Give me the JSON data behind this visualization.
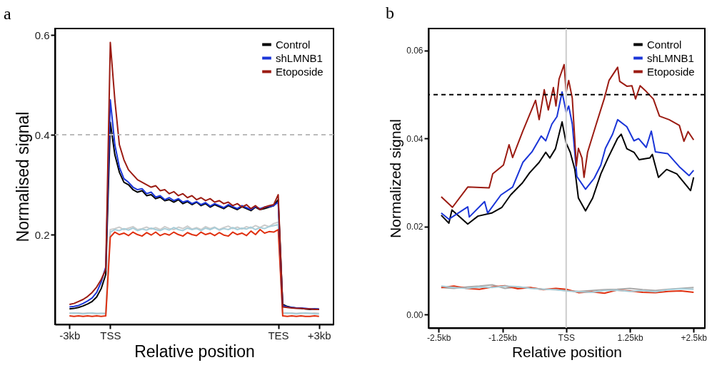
{
  "chart_data": [
    {
      "type": "line",
      "title": "a",
      "xlabel": "Relative position",
      "ylabel": "Normalised signal",
      "legend": "top right",
      "categories": [
        "-3kb",
        null,
        null,
        null,
        null,
        null,
        null,
        null,
        null,
        "TSS",
        null,
        null,
        null,
        null,
        null,
        null,
        null,
        null,
        null,
        null,
        null,
        null,
        null,
        null,
        null,
        null,
        null,
        null,
        null,
        null,
        null,
        null,
        null,
        null,
        null,
        null,
        null,
        null,
        null,
        null,
        null,
        null,
        null,
        null,
        null,
        null,
        "TES",
        null,
        null,
        null,
        null,
        null,
        null,
        null,
        null,
        "+3kb"
      ],
      "ylim": [
        0.02,
        0.613
      ],
      "yticks": [
        0.2,
        0.4,
        0.6
      ],
      "ref_lines": [
        {
          "axis": "y",
          "value": 0.4,
          "color": "#bbbbbb",
          "line_style": "dashed"
        }
      ],
      "series": [
        {
          "color": "#cccccc",
          "values": [
            0.043,
            0.042,
            0.043,
            0.042,
            0.043,
            0.042,
            0.041,
            0.042,
            0.043,
            0.21,
            0.212,
            0.215,
            0.21,
            0.213,
            0.216,
            0.21,
            0.212,
            0.215,
            0.211,
            0.214,
            0.21,
            0.216,
            0.212,
            0.21,
            0.215,
            0.212,
            0.217,
            0.211,
            0.214,
            0.21,
            0.216,
            0.212,
            0.215,
            0.21,
            0.214,
            0.217,
            0.212,
            0.215,
            0.211,
            0.216,
            0.213,
            0.218,
            0.214,
            0.219,
            0.216,
            0.222,
            0.225,
            0.043,
            0.042,
            0.043,
            0.042,
            0.043,
            0.042,
            0.042,
            0.043,
            0.042
          ]
        },
        {
          "color": "#a8cdd8",
          "values": [
            0.042,
            0.043,
            0.042,
            0.041,
            0.042,
            0.043,
            0.042,
            0.042,
            0.041,
            0.205,
            0.21,
            0.208,
            0.212,
            0.209,
            0.213,
            0.208,
            0.211,
            0.209,
            0.213,
            0.21,
            0.208,
            0.212,
            0.209,
            0.214,
            0.21,
            0.208,
            0.213,
            0.21,
            0.212,
            0.208,
            0.213,
            0.21,
            0.214,
            0.209,
            0.212,
            0.21,
            0.214,
            0.21,
            0.213,
            0.211,
            0.215,
            0.21,
            0.214,
            0.212,
            0.216,
            0.218,
            0.22,
            0.042,
            0.043,
            0.042,
            0.041,
            0.042,
            0.043,
            0.042,
            0.041,
            0.041
          ]
        },
        {
          "color": "#e0300f",
          "values": [
            0.037,
            0.036,
            0.037,
            0.036,
            0.037,
            0.036,
            0.037,
            0.036,
            0.037,
            0.195,
            0.205,
            0.2,
            0.203,
            0.198,
            0.205,
            0.2,
            0.197,
            0.204,
            0.199,
            0.205,
            0.198,
            0.202,
            0.199,
            0.205,
            0.2,
            0.197,
            0.204,
            0.2,
            0.198,
            0.205,
            0.2,
            0.203,
            0.198,
            0.204,
            0.199,
            0.197,
            0.205,
            0.2,
            0.203,
            0.198,
            0.207,
            0.2,
            0.21,
            0.203,
            0.206,
            0.205,
            0.21,
            0.037,
            0.036,
            0.037,
            0.036,
            0.037,
            0.036,
            0.036,
            0.037,
            0.036
          ]
        },
        {
          "name": "Control",
          "color": "#000000",
          "values": [
            0.051,
            0.052,
            0.054,
            0.057,
            0.061,
            0.066,
            0.075,
            0.092,
            0.12,
            0.425,
            0.36,
            0.325,
            0.305,
            0.3,
            0.29,
            0.285,
            0.288,
            0.278,
            0.28,
            0.272,
            0.275,
            0.268,
            0.27,
            0.265,
            0.27,
            0.262,
            0.266,
            0.26,
            0.265,
            0.258,
            0.262,
            0.255,
            0.26,
            0.256,
            0.252,
            0.258,
            0.254,
            0.25,
            0.256,
            0.252,
            0.248,
            0.255,
            0.25,
            0.252,
            0.255,
            0.258,
            0.27,
            0.06,
            0.056,
            0.054,
            0.053,
            0.052,
            0.051,
            0.05,
            0.051,
            0.05
          ]
        },
        {
          "name": "shLMNB1",
          "color": "#1a35d8",
          "values": [
            0.055,
            0.056,
            0.058,
            0.062,
            0.067,
            0.073,
            0.084,
            0.105,
            0.135,
            0.47,
            0.38,
            0.335,
            0.312,
            0.305,
            0.295,
            0.29,
            0.292,
            0.282,
            0.285,
            0.275,
            0.278,
            0.27,
            0.274,
            0.268,
            0.272,
            0.265,
            0.268,
            0.262,
            0.266,
            0.26,
            0.264,
            0.257,
            0.262,
            0.258,
            0.254,
            0.26,
            0.256,
            0.252,
            0.258,
            0.254,
            0.25,
            0.256,
            0.252,
            0.255,
            0.256,
            0.258,
            0.265,
            0.058,
            0.055,
            0.054,
            0.053,
            0.053,
            0.052,
            0.051,
            0.051,
            0.051
          ]
        },
        {
          "name": "Etoposide",
          "color": "#9b1b12",
          "values": [
            0.06,
            0.062,
            0.066,
            0.07,
            0.076,
            0.084,
            0.095,
            0.11,
            0.13,
            0.585,
            0.47,
            0.38,
            0.35,
            0.33,
            0.32,
            0.31,
            0.305,
            0.3,
            0.295,
            0.298,
            0.288,
            0.29,
            0.282,
            0.286,
            0.278,
            0.282,
            0.274,
            0.278,
            0.27,
            0.274,
            0.268,
            0.272,
            0.265,
            0.268,
            0.262,
            0.265,
            0.258,
            0.262,
            0.255,
            0.26,
            0.252,
            0.258,
            0.25,
            0.255,
            0.258,
            0.26,
            0.28,
            0.055,
            0.054,
            0.053,
            0.052,
            0.052,
            0.051,
            0.051,
            0.05,
            0.05
          ]
        }
      ]
    },
    {
      "type": "line",
      "title": "b",
      "xlabel": "Relative position",
      "ylabel": "Normalized signal",
      "legend": "top right",
      "xlim": [
        -2.7,
        2.72
      ],
      "xticks": [
        {
          "value": -2.5,
          "label": "-2.5kb"
        },
        {
          "value": -1.25,
          "label": "-1.25kb"
        },
        {
          "value": 0,
          "label": "TSS"
        },
        {
          "value": 1.25,
          "label": "1.25kb"
        },
        {
          "value": 2.5,
          "label": "+2.5kb"
        }
      ],
      "ylim": [
        -0.003,
        0.065
      ],
      "yticks": [
        {
          "value": 0,
          "label": "0.00"
        },
        {
          "value": 0.02,
          "label": "0.02"
        },
        {
          "value": 0.04,
          "label": "0.04"
        },
        {
          "value": 0.06,
          "label": "0.06"
        }
      ],
      "ref_lines": [
        {
          "axis": "x",
          "value": 0,
          "color": "#cccccc",
          "line_style": "solid"
        },
        {
          "axis": "y",
          "value": 0.05,
          "color": "#000000",
          "line_style": "dashed"
        }
      ],
      "series": [
        {
          "color": "#aaaaaa",
          "x": [
            -2.45,
            -2.2,
            -1.95,
            -1.7,
            -1.45,
            -1.2,
            -0.95,
            -0.7,
            -0.45,
            -0.2,
            0,
            0.25,
            0.5,
            0.75,
            1.0,
            1.25,
            1.5,
            1.75,
            2.0,
            2.25,
            2.5
          ],
          "values": [
            0.0062,
            0.006,
            0.0063,
            0.0065,
            0.0068,
            0.006,
            0.0063,
            0.0061,
            0.0058,
            0.0057,
            0.0055,
            0.0053,
            0.0055,
            0.0057,
            0.0058,
            0.006,
            0.0057,
            0.0055,
            0.0058,
            0.006,
            0.0062
          ]
        },
        {
          "color": "#e0300f",
          "x": [
            -2.45,
            -2.2,
            -1.95,
            -1.7,
            -1.45,
            -1.2,
            -0.95,
            -0.7,
            -0.45,
            -0.2,
            0,
            0.25,
            0.5,
            0.75,
            1.0,
            1.25,
            1.5,
            1.75,
            2.0,
            2.25,
            2.5
          ],
          "values": [
            0.0062,
            0.0065,
            0.006,
            0.0058,
            0.0063,
            0.0066,
            0.0059,
            0.0062,
            0.0057,
            0.006,
            0.0058,
            0.005,
            0.0052,
            0.0049,
            0.0056,
            0.0054,
            0.0051,
            0.005,
            0.0053,
            0.0054,
            0.0051
          ]
        },
        {
          "color": "#a8cdd8",
          "x": [
            -2.45,
            -2.2,
            -1.95,
            -1.7,
            -1.45,
            -1.2,
            -0.95,
            -0.7,
            -0.45,
            -0.2,
            0,
            0.25,
            0.5,
            0.75,
            1.0,
            1.25,
            1.5,
            1.75,
            2.0,
            2.25,
            2.5
          ],
          "values": [
            0.0065,
            0.0062,
            0.006,
            0.0063,
            0.0062,
            0.0065,
            0.0064,
            0.006,
            0.0058,
            0.0057,
            0.0054,
            0.0052,
            0.0051,
            0.0055,
            0.0056,
            0.0053,
            0.0055,
            0.0052,
            0.0057,
            0.0059,
            0.0058
          ]
        },
        {
          "name": "Control",
          "color": "#000000",
          "x": [
            -2.45,
            -2.3,
            -2.24,
            -1.93,
            -1.73,
            -1.46,
            -1.26,
            -1.09,
            -0.86,
            -0.72,
            -0.53,
            -0.4,
            -0.32,
            -0.21,
            -0.08,
            0,
            0.08,
            0.17,
            0.24,
            0.38,
            0.52,
            0.68,
            0.82,
            1.01,
            1.08,
            1.19,
            1.33,
            1.43,
            1.64,
            1.69,
            1.81,
            1.97,
            2.17,
            2.44,
            2.5
          ],
          "values": [
            0.0226,
            0.0208,
            0.0238,
            0.0206,
            0.0224,
            0.0231,
            0.0244,
            0.0272,
            0.0299,
            0.0322,
            0.0346,
            0.0369,
            0.0356,
            0.0377,
            0.0438,
            0.039,
            0.0369,
            0.033,
            0.0265,
            0.0236,
            0.0265,
            0.032,
            0.0356,
            0.0401,
            0.041,
            0.0377,
            0.0369,
            0.0352,
            0.0356,
            0.0364,
            0.0312,
            0.033,
            0.032,
            0.0282,
            0.0312
          ]
        },
        {
          "name": "shLMNB1",
          "color": "#1a35d8",
          "x": [
            -2.45,
            -2.3,
            -1.93,
            -1.9,
            -1.6,
            -1.54,
            -1.28,
            -1.05,
            -0.85,
            -0.67,
            -0.49,
            -0.4,
            -0.28,
            -0.18,
            -0.08,
            0,
            0.05,
            0.12,
            0.21,
            0.38,
            0.55,
            0.68,
            0.77,
            0.91,
            1.01,
            1.19,
            1.33,
            1.42,
            1.57,
            1.67,
            1.75,
            1.99,
            2.22,
            2.41,
            2.5
          ],
          "values": [
            0.0231,
            0.0217,
            0.0245,
            0.0222,
            0.0257,
            0.0231,
            0.0272,
            0.029,
            0.0346,
            0.037,
            0.0406,
            0.0395,
            0.0433,
            0.045,
            0.0506,
            0.046,
            0.0474,
            0.0433,
            0.0314,
            0.0285,
            0.031,
            0.034,
            0.0378,
            0.041,
            0.0443,
            0.0427,
            0.0395,
            0.04,
            0.038,
            0.0417,
            0.037,
            0.0366,
            0.0336,
            0.0316,
            0.0328
          ]
        },
        {
          "name": "Etoposide",
          "color": "#9b1b12",
          "x": [
            -2.45,
            -2.23,
            -1.93,
            -1.51,
            -1.44,
            -1.23,
            -1.12,
            -1.05,
            -0.85,
            -0.6,
            -0.53,
            -0.43,
            -0.35,
            -0.25,
            -0.2,
            -0.14,
            -0.04,
            0,
            0.05,
            0.12,
            0.2,
            0.24,
            0.31,
            0.35,
            0.42,
            0.59,
            0.75,
            0.84,
            1.01,
            1.05,
            1.19,
            1.29,
            1.36,
            1.45,
            1.57,
            1.71,
            1.83,
            2.02,
            2.22,
            2.31,
            2.39,
            2.5
          ],
          "values": [
            0.0268,
            0.0244,
            0.029,
            0.0288,
            0.032,
            0.034,
            0.0386,
            0.0357,
            0.0417,
            0.0487,
            0.0443,
            0.0511,
            0.0465,
            0.0516,
            0.0474,
            0.0535,
            0.0568,
            0.0506,
            0.0532,
            0.0492,
            0.0338,
            0.0378,
            0.0356,
            0.0312,
            0.0369,
            0.0433,
            0.0492,
            0.0532,
            0.0562,
            0.053,
            0.0519,
            0.052,
            0.049,
            0.052,
            0.0507,
            0.049,
            0.0451,
            0.0443,
            0.043,
            0.0394,
            0.0416,
            0.0397
          ]
        }
      ]
    }
  ]
}
